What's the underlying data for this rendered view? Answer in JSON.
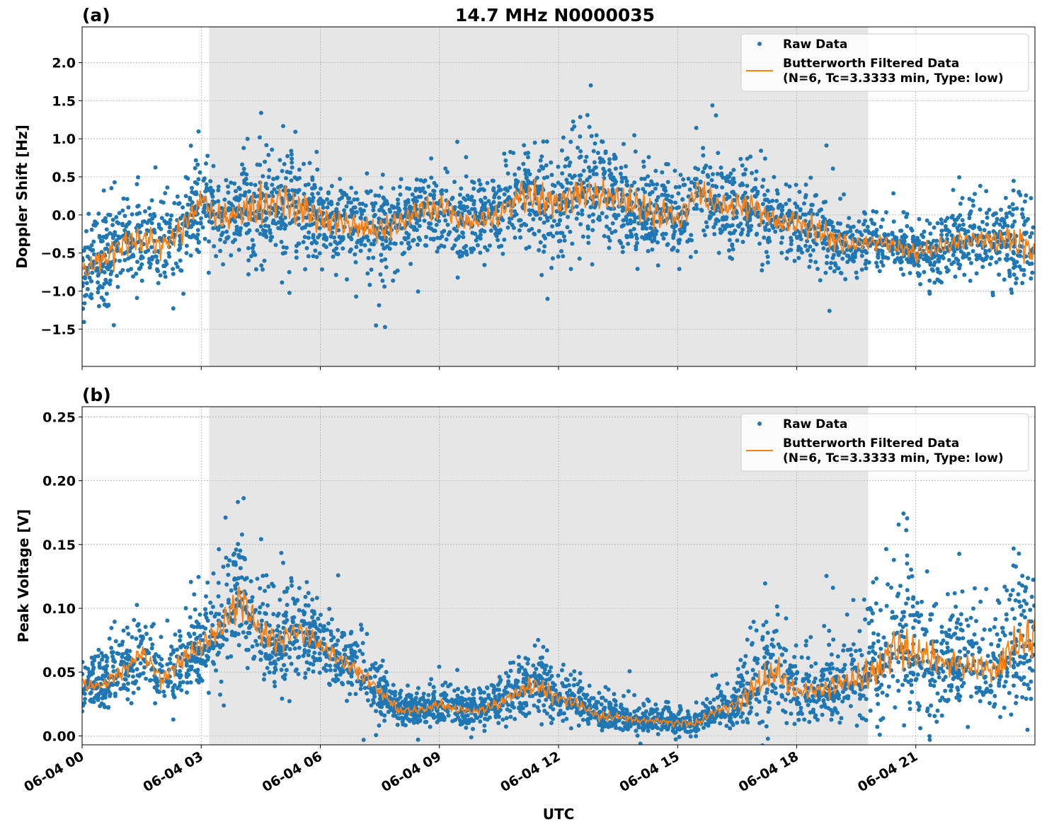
{
  "chart_data": [
    {
      "type": "scatter",
      "panel_label": "(a)",
      "title": "14.7 MHz N0000035",
      "xlabel": "",
      "ylabel": "Doppler Shift [Hz]",
      "x_tick_labels": [
        "06-04 00",
        "06-04 03",
        "06-04 06",
        "06-04 09",
        "06-04 12",
        "06-04 15",
        "06-04 18",
        "06-04 21"
      ],
      "x_ticks_hours": [
        0,
        3,
        6,
        9,
        12,
        15,
        18,
        21
      ],
      "xlim_hours": [
        0,
        24
      ],
      "y_ticks": [
        -1.5,
        -1.0,
        -0.5,
        0.0,
        0.5,
        1.0,
        1.5,
        2.0
      ],
      "y_tick_labels": [
        "−1.5",
        "−1.0",
        "−0.5",
        "0.0",
        "0.5",
        "1.0",
        "1.5",
        "2.0"
      ],
      "ylim": [
        -1.99,
        2.47
      ],
      "grid": true,
      "shaded_interval_hours": [
        3.2,
        19.8
      ],
      "shade_color": "#e6e6e6",
      "legend_position": "top-right",
      "legend": [
        "Raw Data",
        "Butterworth Filtered Data",
        "(N=6, Tc=3.3333 min, Type: low)"
      ],
      "colors": {
        "raw": "#1f77b4",
        "filtered": "#ff7f0e"
      },
      "hours": [
        0,
        0.5,
        1,
        1.5,
        2,
        2.5,
        3,
        3.5,
        4,
        4.5,
        5,
        5.5,
        6,
        6.5,
        7,
        7.5,
        8,
        8.5,
        9,
        9.5,
        10,
        10.5,
        11,
        11.5,
        12,
        12.5,
        13,
        13.5,
        14,
        14.5,
        15,
        15.5,
        16,
        16.5,
        17,
        17.5,
        18,
        18.5,
        19,
        19.5,
        20,
        20.5,
        21,
        21.5,
        22,
        22.5,
        23,
        23.5,
        24
      ],
      "series": [
        {
          "name": "Butterworth Filtered Data",
          "values": [
            -0.75,
            -0.6,
            -0.4,
            -0.3,
            -0.4,
            -0.2,
            0.2,
            -0.1,
            0.05,
            0.1,
            0.2,
            0.1,
            -0.05,
            -0.1,
            -0.15,
            -0.2,
            -0.1,
            0.05,
            0.1,
            -0.05,
            -0.1,
            0.0,
            0.25,
            0.2,
            0.15,
            0.3,
            0.25,
            0.2,
            0.1,
            0.0,
            -0.05,
            0.3,
            0.15,
            0.1,
            0.1,
            -0.1,
            -0.1,
            -0.2,
            -0.35,
            -0.4,
            -0.35,
            -0.4,
            -0.5,
            -0.45,
            -0.35,
            -0.3,
            -0.35,
            -0.3,
            -0.5
          ]
        },
        {
          "name": "Raw Data",
          "spread": [
            0.45,
            0.5,
            0.55,
            0.6,
            0.5,
            0.55,
            0.6,
            0.55,
            0.6,
            0.7,
            0.7,
            0.65,
            0.55,
            0.5,
            0.5,
            0.55,
            0.5,
            0.45,
            0.5,
            0.45,
            0.45,
            0.5,
            0.6,
            0.65,
            0.6,
            0.65,
            0.7,
            0.6,
            0.55,
            0.5,
            0.5,
            0.6,
            0.55,
            0.5,
            0.45,
            0.4,
            0.4,
            0.45,
            0.4,
            0.35,
            0.3,
            0.3,
            0.3,
            0.35,
            0.4,
            0.4,
            0.45,
            0.6,
            0.5
          ]
        }
      ]
    },
    {
      "type": "scatter",
      "panel_label": "(b)",
      "xlabel": "UTC",
      "ylabel": "Peak Voltage [V]",
      "x_tick_labels": [
        "06-04 00",
        "06-04 03",
        "06-04 06",
        "06-04 09",
        "06-04 12",
        "06-04 15",
        "06-04 18",
        "06-04 21"
      ],
      "x_ticks_hours": [
        0,
        3,
        6,
        9,
        12,
        15,
        18,
        21
      ],
      "xlim_hours": [
        0,
        24
      ],
      "y_ticks": [
        0.0,
        0.05,
        0.1,
        0.15,
        0.2,
        0.25
      ],
      "y_tick_labels": [
        "0.00",
        "0.05",
        "0.10",
        "0.15",
        "0.20",
        "0.25"
      ],
      "ylim": [
        -0.007,
        0.258
      ],
      "grid": true,
      "shaded_interval_hours": [
        3.2,
        19.8
      ],
      "shade_color": "#e6e6e6",
      "legend_position": "top-right",
      "legend": [
        "Raw Data",
        "Butterworth Filtered Data",
        "(N=6, Tc=3.3333 min, Type: low)"
      ],
      "colors": {
        "raw": "#1f77b4",
        "filtered": "#ff7f0e"
      },
      "hours": [
        0,
        0.5,
        1,
        1.5,
        2,
        2.5,
        3,
        3.5,
        4,
        4.5,
        5,
        5.5,
        6,
        6.5,
        7,
        7.5,
        8,
        8.5,
        9,
        9.5,
        10,
        10.5,
        11,
        11.5,
        12,
        12.5,
        13,
        13.5,
        14,
        14.5,
        15,
        15.5,
        16,
        16.5,
        17,
        17.5,
        18,
        18.5,
        19,
        19.5,
        20,
        20.5,
        21,
        21.5,
        22,
        22.5,
        23,
        23.5,
        24
      ],
      "series": [
        {
          "name": "Butterworth Filtered Data",
          "values": [
            0.04,
            0.04,
            0.05,
            0.065,
            0.045,
            0.06,
            0.07,
            0.085,
            0.11,
            0.08,
            0.075,
            0.085,
            0.07,
            0.06,
            0.05,
            0.035,
            0.02,
            0.02,
            0.025,
            0.02,
            0.02,
            0.025,
            0.035,
            0.04,
            0.03,
            0.025,
            0.015,
            0.015,
            0.012,
            0.012,
            0.01,
            0.01,
            0.02,
            0.025,
            0.04,
            0.05,
            0.035,
            0.035,
            0.04,
            0.045,
            0.05,
            0.07,
            0.065,
            0.06,
            0.055,
            0.055,
            0.05,
            0.07,
            0.08
          ]
        },
        {
          "name": "Raw Data",
          "spread": [
            0.015,
            0.015,
            0.02,
            0.025,
            0.02,
            0.025,
            0.025,
            0.035,
            0.045,
            0.03,
            0.03,
            0.03,
            0.025,
            0.02,
            0.02,
            0.015,
            0.01,
            0.01,
            0.012,
            0.01,
            0.01,
            0.012,
            0.018,
            0.02,
            0.015,
            0.012,
            0.01,
            0.01,
            0.008,
            0.008,
            0.008,
            0.008,
            0.01,
            0.015,
            0.03,
            0.035,
            0.02,
            0.02,
            0.025,
            0.03,
            0.04,
            0.05,
            0.045,
            0.035,
            0.03,
            0.03,
            0.03,
            0.045,
            0.05
          ]
        }
      ]
    }
  ]
}
